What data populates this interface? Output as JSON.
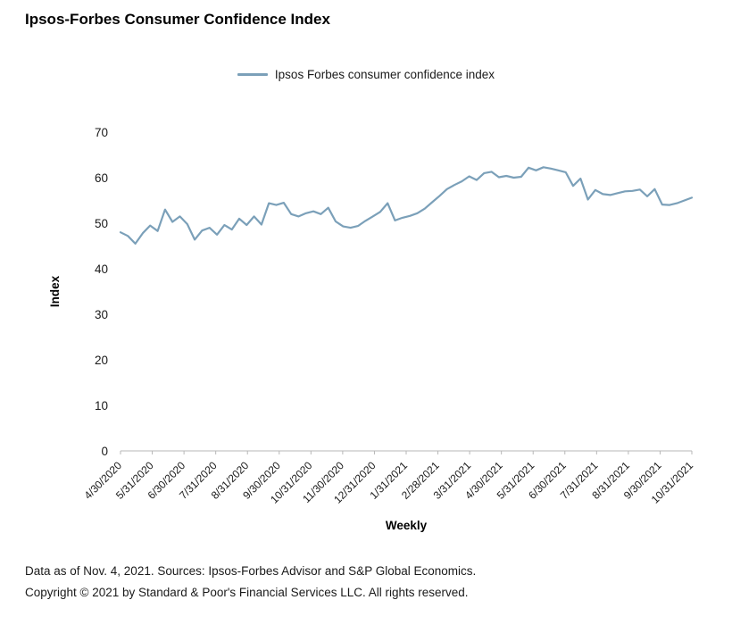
{
  "page": {
    "title": "Ipsos-Forbes Consumer Confidence Index",
    "footer_line1": "Data as of Nov. 4, 2021. Sources: Ipsos-Forbes Advisor and S&P Global Economics.",
    "footer_line2": "Copyright © 2021 by Standard & Poor's Financial Services LLC. All rights reserved."
  },
  "chart_data": {
    "type": "line",
    "title": "Ipsos-Forbes Consumer Confidence Index",
    "legend": [
      "Ipsos Forbes consumer confidence index"
    ],
    "legend_position": "top",
    "xlabel": "Weekly",
    "ylabel": "Index",
    "ylim": [
      0,
      70
    ],
    "ytick_step": 10,
    "grid": false,
    "line_color": "#7BA0B9",
    "axis_color": "#b7b7b7",
    "text_color": "#1a1a1a",
    "x_tick_labels": [
      "4/30/2020",
      "5/31/2020",
      "6/30/2020",
      "7/31/2020",
      "8/31/2020",
      "9/30/2020",
      "10/31/2020",
      "11/30/2020",
      "12/31/2020",
      "1/31/2021",
      "2/28/2021",
      "3/31/2021",
      "4/30/2021",
      "5/31/2021",
      "6/30/2021",
      "7/31/2021",
      "8/31/2021",
      "9/30/2021",
      "10/31/2021"
    ],
    "series": [
      {
        "name": "Ipsos Forbes consumer confidence index",
        "values": [
          48,
          47.2,
          45.5,
          47.8,
          49.5,
          48.3,
          53,
          50.3,
          51.5,
          49.8,
          46.4,
          48.4,
          49,
          47.5,
          49.6,
          48.6,
          51,
          49.6,
          51.5,
          49.7,
          54.4,
          54,
          54.5,
          52,
          51.5,
          52.2,
          52.6,
          52,
          53.4,
          50.4,
          49.3,
          49,
          49.4,
          50.5,
          51.5,
          52.5,
          54.4,
          50.6,
          51.2,
          51.6,
          52.2,
          53.2,
          54.6,
          56,
          57.5,
          58.4,
          59.2,
          60.3,
          59.5,
          61,
          61.3,
          60.1,
          60.4,
          60,
          60.2,
          62.2,
          61.6,
          62.3,
          62,
          61.6,
          61.2,
          58.2,
          59.8,
          55.2,
          57.3,
          56.4,
          56.2,
          56.6,
          57,
          57.1,
          57.4,
          55.9,
          57.5,
          54.1,
          54,
          54.4,
          55,
          55.6
        ]
      }
    ]
  }
}
